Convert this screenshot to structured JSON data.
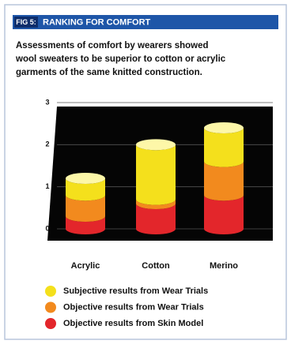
{
  "chart_data": {
    "type": "bar",
    "stacked": true,
    "figure_label": "FIG 5:",
    "title": "RANKING FOR COMFORT",
    "subtitle": [
      "Assessments of comfort by wearers showed",
      "wool sweaters to be superior to cotton or acrylic",
      "garments of the same knitted construction."
    ],
    "categories": [
      "Acrylic",
      "Cotton",
      "Merino"
    ],
    "series": [
      {
        "name": "Objective results from Skin Model",
        "color": "#e3262b",
        "values": [
          0.3,
          0.6,
          0.8
        ]
      },
      {
        "name": "Objective results from Wear Trials",
        "color": "#f28a1e",
        "values": [
          0.5,
          0.1,
          0.8
        ]
      },
      {
        "name": "Subjective results from Wear Trials",
        "color": "#f4e01c",
        "values": [
          0.4,
          1.3,
          0.8
        ]
      }
    ],
    "ylim": [
      0,
      3
    ],
    "yticks": [
      0,
      1,
      2,
      3
    ],
    "grid": true
  }
}
